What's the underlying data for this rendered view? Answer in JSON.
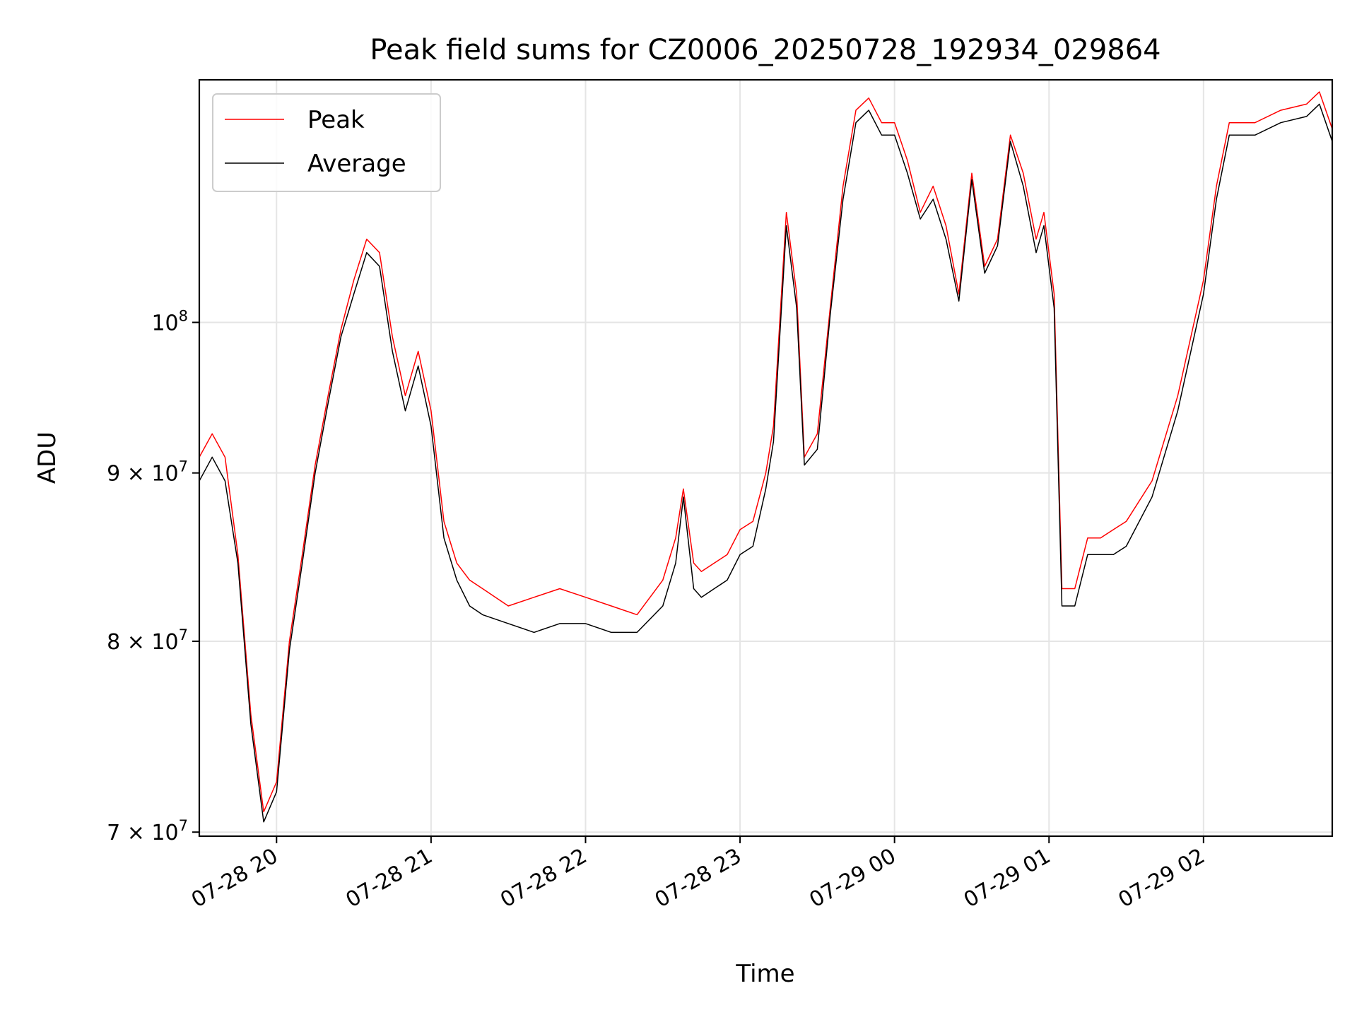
{
  "chart_data": {
    "type": "line",
    "title": "Peak field sums for CZ0006_20250728_192934_029864",
    "xlabel": "Time",
    "ylabel": "ADU",
    "y_scale": "log",
    "ylim": [
      69800000,
      118500000
    ],
    "xlim": [
      "2025-07-28 19:30",
      "2025-07-29 02:50"
    ],
    "x_ticks": [
      {
        "value": "2025-07-28 20:00",
        "label": "07-28 20"
      },
      {
        "value": "2025-07-28 21:00",
        "label": "07-28 21"
      },
      {
        "value": "2025-07-28 22:00",
        "label": "07-28 22"
      },
      {
        "value": "2025-07-28 23:00",
        "label": "07-28 23"
      },
      {
        "value": "2025-07-29 00:00",
        "label": "07-29 00"
      },
      {
        "value": "2025-07-29 01:00",
        "label": "07-29 01"
      },
      {
        "value": "2025-07-29 02:00",
        "label": "07-29 02"
      }
    ],
    "y_ticks": [
      {
        "value": 70000000,
        "mantissa": "7",
        "base": "10",
        "exponent": "7"
      },
      {
        "value": 80000000,
        "mantissa": "8",
        "base": "10",
        "exponent": "7"
      },
      {
        "value": 90000000,
        "mantissa": "9",
        "base": "10",
        "exponent": "7"
      },
      {
        "value": 100000000,
        "mantissa": "",
        "base": "10",
        "exponent": "8"
      }
    ],
    "grid": true,
    "legend": {
      "position": "upper-left"
    },
    "series": [
      {
        "name": "Peak",
        "color": "#ff0000",
        "x": [
          "2025-07-28 19:30",
          "2025-07-28 19:35",
          "2025-07-28 19:40",
          "2025-07-28 19:45",
          "2025-07-28 19:50",
          "2025-07-28 19:55",
          "2025-07-28 20:00",
          "2025-07-28 20:05",
          "2025-07-28 20:10",
          "2025-07-28 20:15",
          "2025-07-28 20:20",
          "2025-07-28 20:25",
          "2025-07-28 20:30",
          "2025-07-28 20:35",
          "2025-07-28 20:40",
          "2025-07-28 20:45",
          "2025-07-28 20:50",
          "2025-07-28 20:55",
          "2025-07-28 21:00",
          "2025-07-28 21:05",
          "2025-07-28 21:10",
          "2025-07-28 21:15",
          "2025-07-28 21:20",
          "2025-07-28 21:30",
          "2025-07-28 21:40",
          "2025-07-28 21:50",
          "2025-07-28 22:00",
          "2025-07-28 22:10",
          "2025-07-28 22:20",
          "2025-07-28 22:30",
          "2025-07-28 22:35",
          "2025-07-28 22:38",
          "2025-07-28 22:42",
          "2025-07-28 22:45",
          "2025-07-28 22:50",
          "2025-07-28 22:55",
          "2025-07-28 23:00",
          "2025-07-28 23:05",
          "2025-07-28 23:10",
          "2025-07-28 23:13",
          "2025-07-28 23:18",
          "2025-07-28 23:22",
          "2025-07-28 23:25",
          "2025-07-28 23:30",
          "2025-07-28 23:35",
          "2025-07-28 23:40",
          "2025-07-28 23:45",
          "2025-07-28 23:50",
          "2025-07-28 23:55",
          "2025-07-29 00:00",
          "2025-07-29 00:05",
          "2025-07-29 00:10",
          "2025-07-29 00:15",
          "2025-07-29 00:20",
          "2025-07-29 00:25",
          "2025-07-29 00:30",
          "2025-07-29 00:35",
          "2025-07-29 00:40",
          "2025-07-29 00:45",
          "2025-07-29 00:50",
          "2025-07-29 00:55",
          "2025-07-29 00:58",
          "2025-07-29 01:02",
          "2025-07-29 01:05",
          "2025-07-29 01:10",
          "2025-07-29 01:15",
          "2025-07-29 01:20",
          "2025-07-29 01:25",
          "2025-07-29 01:30",
          "2025-07-29 01:40",
          "2025-07-29 01:50",
          "2025-07-29 02:00",
          "2025-07-29 02:05",
          "2025-07-29 02:10",
          "2025-07-29 02:20",
          "2025-07-29 02:30",
          "2025-07-29 02:40",
          "2025-07-29 02:45",
          "2025-07-29 02:50"
        ],
        "values": [
          91000000,
          92500000,
          91000000,
          85000000,
          76000000,
          71000000,
          72500000,
          80000000,
          85000000,
          90500000,
          95000000,
          99500000,
          103000000,
          106000000,
          105000000,
          99000000,
          95000000,
          98000000,
          94000000,
          87000000,
          84500000,
          83500000,
          83000000,
          82000000,
          82500000,
          83000000,
          82500000,
          82000000,
          81500000,
          83500000,
          86000000,
          89000000,
          84500000,
          84000000,
          84500000,
          85000000,
          86500000,
          87000000,
          90000000,
          93000000,
          108000000,
          102000000,
          91000000,
          92500000,
          101000000,
          110000000,
          116000000,
          117000000,
          115000000,
          115000000,
          112000000,
          108000000,
          110000000,
          107000000,
          102000000,
          111000000,
          104000000,
          106000000,
          114000000,
          111000000,
          106000000,
          108000000,
          102000000,
          83000000,
          83000000,
          86000000,
          86000000,
          86500000,
          87000000,
          89500000,
          95000000,
          103000000,
          110000000,
          115000000,
          115000000,
          116000000,
          116500000,
          117500000,
          114500000
        ]
      },
      {
        "name": "Average",
        "color": "#000000",
        "x": [
          "2025-07-28 19:30",
          "2025-07-28 19:35",
          "2025-07-28 19:40",
          "2025-07-28 19:45",
          "2025-07-28 19:50",
          "2025-07-28 19:55",
          "2025-07-28 20:00",
          "2025-07-28 20:05",
          "2025-07-28 20:10",
          "2025-07-28 20:15",
          "2025-07-28 20:20",
          "2025-07-28 20:25",
          "2025-07-28 20:30",
          "2025-07-28 20:35",
          "2025-07-28 20:40",
          "2025-07-28 20:45",
          "2025-07-28 20:50",
          "2025-07-28 20:55",
          "2025-07-28 21:00",
          "2025-07-28 21:05",
          "2025-07-28 21:10",
          "2025-07-28 21:15",
          "2025-07-28 21:20",
          "2025-07-28 21:30",
          "2025-07-28 21:40",
          "2025-07-28 21:50",
          "2025-07-28 22:00",
          "2025-07-28 22:10",
          "2025-07-28 22:20",
          "2025-07-28 22:30",
          "2025-07-28 22:35",
          "2025-07-28 22:38",
          "2025-07-28 22:42",
          "2025-07-28 22:45",
          "2025-07-28 22:50",
          "2025-07-28 22:55",
          "2025-07-28 23:00",
          "2025-07-28 23:05",
          "2025-07-28 23:10",
          "2025-07-28 23:13",
          "2025-07-28 23:18",
          "2025-07-28 23:22",
          "2025-07-28 23:25",
          "2025-07-28 23:30",
          "2025-07-28 23:35",
          "2025-07-28 23:40",
          "2025-07-28 23:45",
          "2025-07-28 23:50",
          "2025-07-28 23:55",
          "2025-07-29 00:00",
          "2025-07-29 00:05",
          "2025-07-29 00:10",
          "2025-07-29 00:15",
          "2025-07-29 00:20",
          "2025-07-29 00:25",
          "2025-07-29 00:30",
          "2025-07-29 00:35",
          "2025-07-29 00:40",
          "2025-07-29 00:45",
          "2025-07-29 00:50",
          "2025-07-29 00:55",
          "2025-07-29 00:58",
          "2025-07-29 01:02",
          "2025-07-29 01:05",
          "2025-07-29 01:10",
          "2025-07-29 01:15",
          "2025-07-29 01:20",
          "2025-07-29 01:25",
          "2025-07-29 01:30",
          "2025-07-29 01:40",
          "2025-07-29 01:50",
          "2025-07-29 02:00",
          "2025-07-29 02:05",
          "2025-07-29 02:10",
          "2025-07-29 02:20",
          "2025-07-29 02:30",
          "2025-07-29 02:40",
          "2025-07-29 02:45",
          "2025-07-29 02:50"
        ],
        "values": [
          89500000,
          91000000,
          89500000,
          84500000,
          75500000,
          70500000,
          72000000,
          79500000,
          84500000,
          90000000,
          94500000,
          99000000,
          102000000,
          105000000,
          104000000,
          98000000,
          94000000,
          97000000,
          93000000,
          86000000,
          83500000,
          82000000,
          81500000,
          81000000,
          80500000,
          81000000,
          81000000,
          80500000,
          80500000,
          82000000,
          84500000,
          88500000,
          83000000,
          82500000,
          83000000,
          83500000,
          85000000,
          85500000,
          89000000,
          92000000,
          107000000,
          101000000,
          90500000,
          91500000,
          100500000,
          109000000,
          115000000,
          116000000,
          114000000,
          114000000,
          111000000,
          107500000,
          109000000,
          106000000,
          101500000,
          110500000,
          103500000,
          105500000,
          113500000,
          110000000,
          105000000,
          107000000,
          101000000,
          82000000,
          82000000,
          85000000,
          85000000,
          85000000,
          85500000,
          88500000,
          94000000,
          102000000,
          109000000,
          114000000,
          114000000,
          115000000,
          115500000,
          116500000,
          113500000
        ]
      }
    ]
  }
}
